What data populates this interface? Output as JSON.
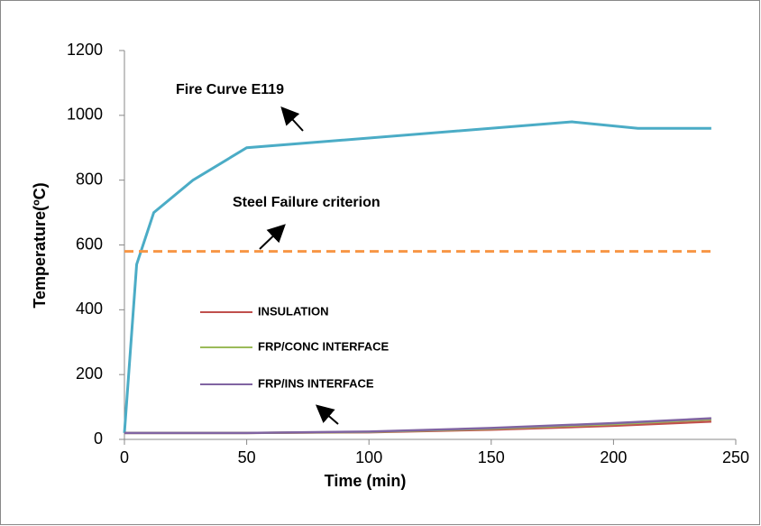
{
  "chart_data": {
    "type": "line",
    "x_label": "Time (min)",
    "y_label": "Temperature(ºC)",
    "xlim": [
      0,
      250
    ],
    "xticks": [
      0,
      50,
      100,
      150,
      200,
      250
    ],
    "ylim": [
      0,
      1200
    ],
    "yticks": [
      0,
      200,
      400,
      600,
      800,
      1000,
      1200
    ],
    "curves": [
      {
        "color": "#4bacc6",
        "dashed": false,
        "x": [
          0,
          5,
          12,
          28,
          50,
          183,
          210,
          240
        ],
        "values": [
          20,
          540,
          700,
          800,
          900,
          980,
          960,
          960
        ]
      },
      {
        "color": "#f79646",
        "dashed": true,
        "x": [
          0,
          240
        ],
        "values": [
          580,
          580
        ]
      }
    ],
    "series": [
      {
        "name": "INSULATION",
        "color": "#c0504d",
        "x": [
          0,
          50,
          100,
          150,
          200,
          240
        ],
        "values": [
          20,
          20,
          22,
          30,
          42,
          55
        ]
      },
      {
        "name": "FRP/CONC INTERFACE",
        "color": "#9bbb59",
        "x": [
          0,
          50,
          100,
          150,
          200,
          240
        ],
        "values": [
          20,
          20,
          23,
          33,
          47,
          62
        ]
      },
      {
        "name": "FRP/INS INTERFACE",
        "color": "#8064a2",
        "x": [
          0,
          50,
          100,
          150,
          200,
          240
        ],
        "values": [
          20,
          20,
          24,
          35,
          50,
          65
        ]
      }
    ],
    "annotations": [
      "Fire Curve E119",
      "Steel Failure criterion"
    ]
  }
}
